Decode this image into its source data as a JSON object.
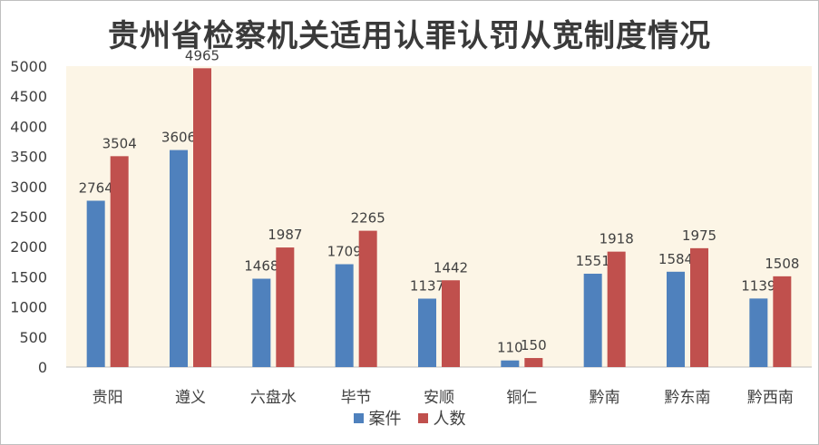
{
  "chart_data": {
    "type": "bar",
    "title": "贵州省检察机关适用认罪认罚从宽制度情况",
    "xlabel": "",
    "ylabel": "",
    "ylim": [
      0,
      5000
    ],
    "yticks": [
      0,
      500,
      1000,
      1500,
      2000,
      2500,
      3000,
      3500,
      4000,
      4500,
      5000
    ],
    "grid": false,
    "legend_position": "bottom",
    "plot_background": "#FCF5E6",
    "categories": [
      "贵阳",
      "遵义",
      "六盘水",
      "毕节",
      "安顺",
      "铜仁",
      "黔南",
      "黔东南",
      "黔西南"
    ],
    "series": [
      {
        "name": "案件",
        "color": "#4F81BD",
        "values": [
          2764,
          3606,
          1468,
          1709,
          1137,
          110,
          1551,
          1584,
          1139
        ]
      },
      {
        "name": "人数",
        "color": "#C0504D",
        "values": [
          3504,
          4965,
          1987,
          2265,
          1442,
          150,
          1918,
          1975,
          1508
        ]
      }
    ]
  }
}
